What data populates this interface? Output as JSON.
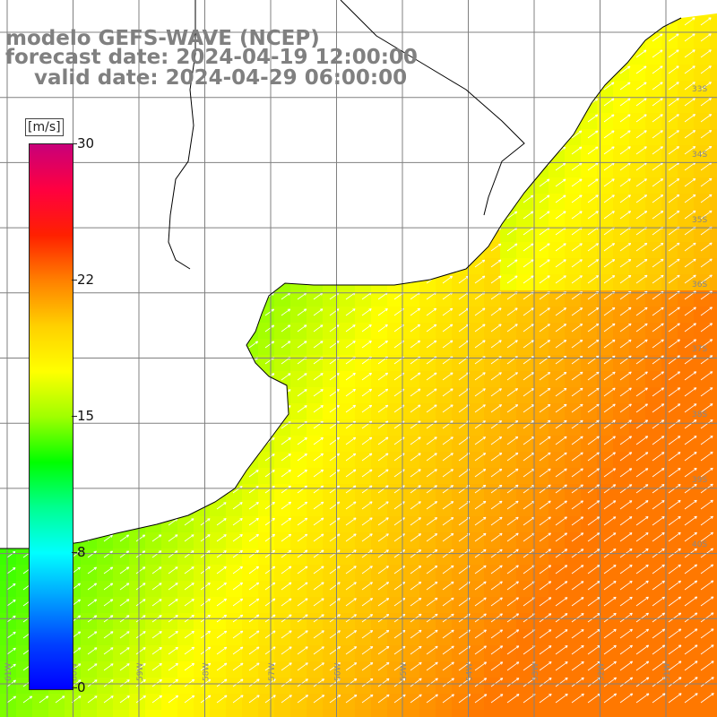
{
  "header": {
    "line1": "modelo GEFS-WAVE (NCEP)",
    "line2": "forecast date: 2024-04-19 12:00:00",
    "line3": "    valid date: 2024-04-29 06:00:00"
  },
  "colorbar": {
    "unit": "[m/s]",
    "ticks": [
      "30",
      "22",
      "15",
      "8",
      "0"
    ],
    "colors": [
      "#0000ff",
      "#00b0ff",
      "#00ffff",
      "#00e060",
      "#00ff00",
      "#80ff00",
      "#ffff00",
      "#ff8000",
      "#ff0000",
      "#c00080"
    ]
  },
  "map": {
    "lat_labels": [
      "33S",
      "34S",
      "35S",
      "36S",
      "37S",
      "38S",
      "39S",
      "40S"
    ],
    "lon_labels": [
      "61W",
      "60W",
      "59W",
      "58W",
      "57W",
      "56W",
      "55W",
      "54W",
      "53W",
      "52W",
      "51W"
    ],
    "colors": {
      "grid": "#808080",
      "coast": "#000000",
      "arrow": "#ffffff",
      "land": "#ffffff"
    }
  }
}
